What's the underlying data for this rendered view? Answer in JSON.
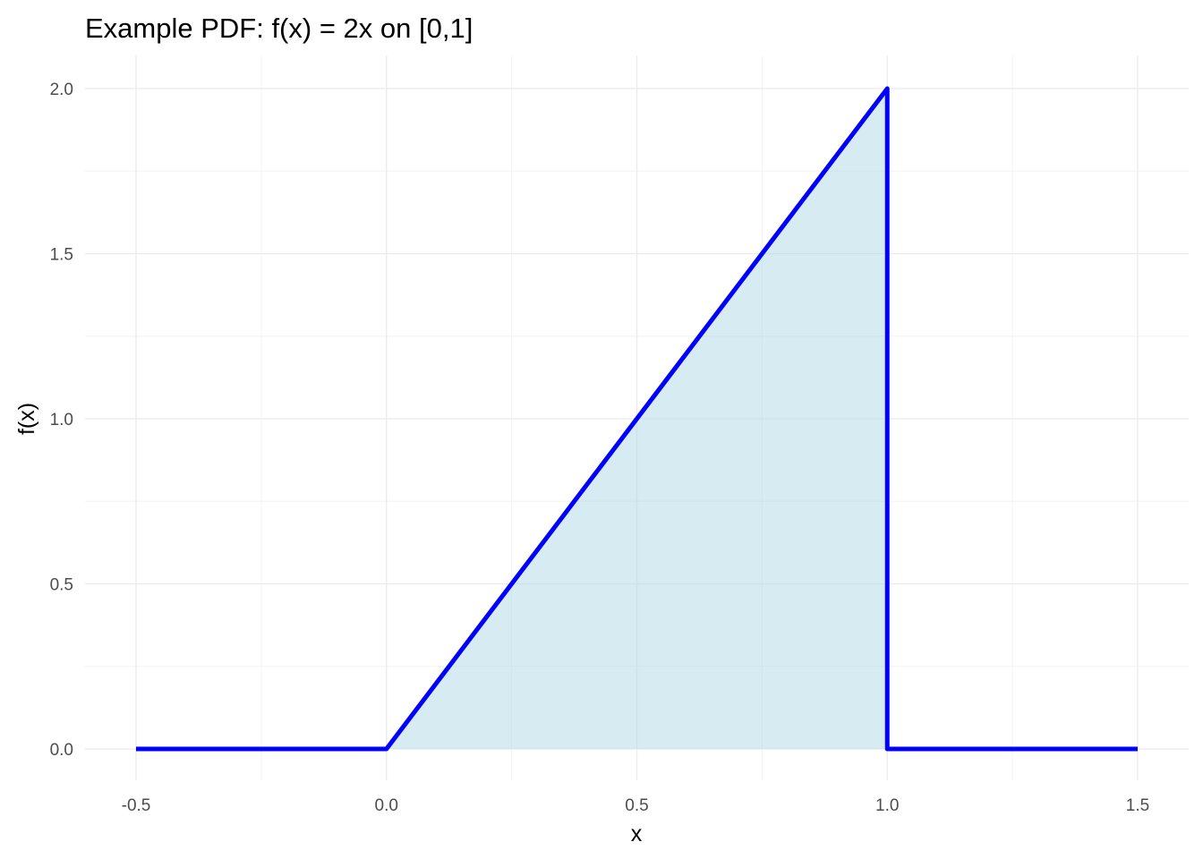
{
  "chart_data": {
    "type": "area",
    "title": "Example PDF: f(x) = 2x on [0,1]",
    "xlabel": "x",
    "ylabel": "f(x)",
    "xlim": [
      -0.5,
      1.5
    ],
    "ylim": [
      0,
      2
    ],
    "x_ticks": [
      -0.5,
      0.0,
      0.5,
      1.0,
      1.5
    ],
    "x_tick_labels": [
      "-0.5",
      "0.0",
      "0.5",
      "1.0",
      "1.5"
    ],
    "y_ticks": [
      0.0,
      0.5,
      1.0,
      1.5,
      2.0
    ],
    "y_tick_labels": [
      "0.0",
      "0.5",
      "1.0",
      "1.5",
      "2.0"
    ],
    "x_minor_ticks": [
      -0.25,
      0.25,
      0.75,
      1.25
    ],
    "y_minor_ticks": [
      0.25,
      0.75,
      1.25,
      1.75
    ],
    "grid": true,
    "legend": "none",
    "line": {
      "color": "#0000ff",
      "points": [
        [
          -0.5,
          0.0
        ],
        [
          0.0,
          0.0
        ],
        [
          1.0,
          2.0
        ],
        [
          1.0,
          0.0
        ],
        [
          1.5,
          0.0
        ]
      ]
    },
    "area": {
      "color": "#add8e6",
      "opacity": 0.5,
      "points": [
        [
          0.0,
          0.0
        ],
        [
          1.0,
          2.0
        ],
        [
          1.0,
          0.0
        ]
      ]
    }
  }
}
